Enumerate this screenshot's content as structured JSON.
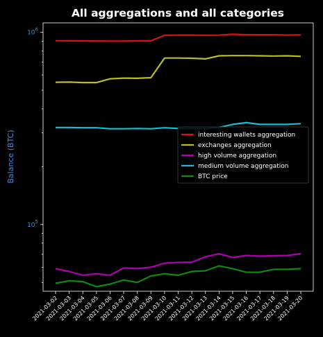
{
  "chart_data": {
    "type": "line",
    "title": "All aggregations and all categories",
    "xlabel": "",
    "ylabel": "Balance (BTC)",
    "yscale": "log",
    "ylim": [
      45000,
      1120000
    ],
    "yticks": [
      {
        "value": 100000,
        "base": "10",
        "exp": "5"
      },
      {
        "value": 1000000,
        "base": "10",
        "exp": "6"
      }
    ],
    "x": [
      "2021-03-02",
      "2021-03-03",
      "2021-03-04",
      "2021-03-05",
      "2021-03-06",
      "2021-03-07",
      "2021-03-08",
      "2021-03-09",
      "2021-03-10",
      "2021-03-11",
      "2021-03-12",
      "2021-03-13",
      "2021-03-14",
      "2021-03-15",
      "2021-03-16",
      "2021-03-17",
      "2021-03-18",
      "2021-03-19",
      "2021-03-20"
    ],
    "legend_position": "center-right",
    "grid": false,
    "series": [
      {
        "name": "interesting wallets aggregation",
        "color": "#e01010",
        "values": [
          905000,
          903000,
          903000,
          901000,
          900000,
          900000,
          903000,
          903000,
          965000,
          968000,
          968000,
          966000,
          967000,
          977000,
          972000,
          972000,
          972000,
          968000,
          970000
        ]
      },
      {
        "name": "exchanges aggregation",
        "color": "#bcbd22",
        "values": [
          550000,
          551000,
          548000,
          548000,
          573000,
          578000,
          577000,
          581000,
          735000,
          735000,
          733000,
          728000,
          755000,
          757000,
          757000,
          755000,
          753000,
          755000,
          750000
        ]
      },
      {
        "name": "high volume aggregation",
        "color": "#b000b0",
        "values": [
          59000,
          57000,
          54500,
          55500,
          54500,
          59500,
          59000,
          60000,
          63000,
          63500,
          63800,
          68000,
          70500,
          67500,
          69000,
          68500,
          68800,
          69000,
          70500
        ]
      },
      {
        "name": "medium volume aggregation",
        "color": "#17becf",
        "values": [
          320000,
          320000,
          319000,
          319000,
          315000,
          315000,
          316000,
          315000,
          319000,
          316000,
          316000,
          315000,
          320000,
          332000,
          339000,
          332000,
          332000,
          332000,
          335000
        ]
      },
      {
        "name": "BTC price",
        "color": "#118811",
        "values": [
          49500,
          51000,
          50500,
          47500,
          49000,
          51500,
          50000,
          54000,
          55500,
          54500,
          57000,
          57500,
          61000,
          59000,
          56500,
          56500,
          58500,
          58500,
          59000
        ]
      }
    ]
  }
}
